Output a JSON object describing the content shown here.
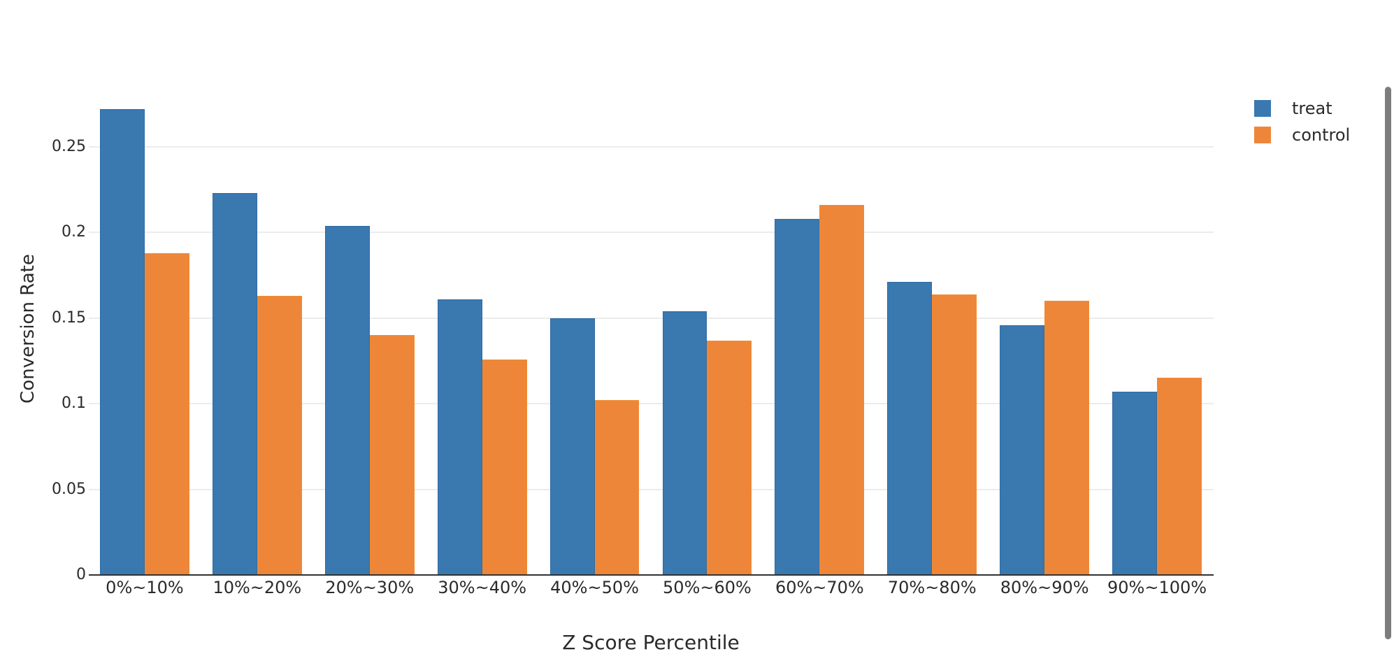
{
  "chart_data": {
    "type": "bar",
    "title": "",
    "xlabel": "Z Score Percentile",
    "ylabel": "Conversion Rate",
    "categories": [
      "0%~10%",
      "10%~20%",
      "20%~30%",
      "30%~40%",
      "40%~50%",
      "50%~60%",
      "60%~70%",
      "70%~80%",
      "80%~90%",
      "90%~100%"
    ],
    "series": [
      {
        "name": "treat",
        "color": "#3a78b0",
        "values": [
          0.272,
          0.223,
          0.204,
          0.161,
          0.15,
          0.154,
          0.208,
          0.171,
          0.146,
          0.107
        ]
      },
      {
        "name": "control",
        "color": "#ee8639",
        "values": [
          0.188,
          0.163,
          0.14,
          0.126,
          0.102,
          0.137,
          0.216,
          0.164,
          0.16,
          0.115
        ]
      }
    ],
    "yticks": [
      0,
      0.05,
      0.1,
      0.15,
      0.2,
      0.25
    ],
    "ytick_labels": [
      "0",
      "0.05",
      "0.1",
      "0.15",
      "0.2",
      "0.25"
    ],
    "ylim": [
      0,
      0.29
    ],
    "grid": true,
    "legend_position": "top-right",
    "barmode": "group"
  },
  "legend": {
    "items": [
      {
        "label": "treat",
        "color": "#3a78b0"
      },
      {
        "label": "control",
        "color": "#ee8639"
      }
    ]
  },
  "axes": {
    "x_title": "Z Score Percentile",
    "y_title": "Conversion Rate"
  }
}
